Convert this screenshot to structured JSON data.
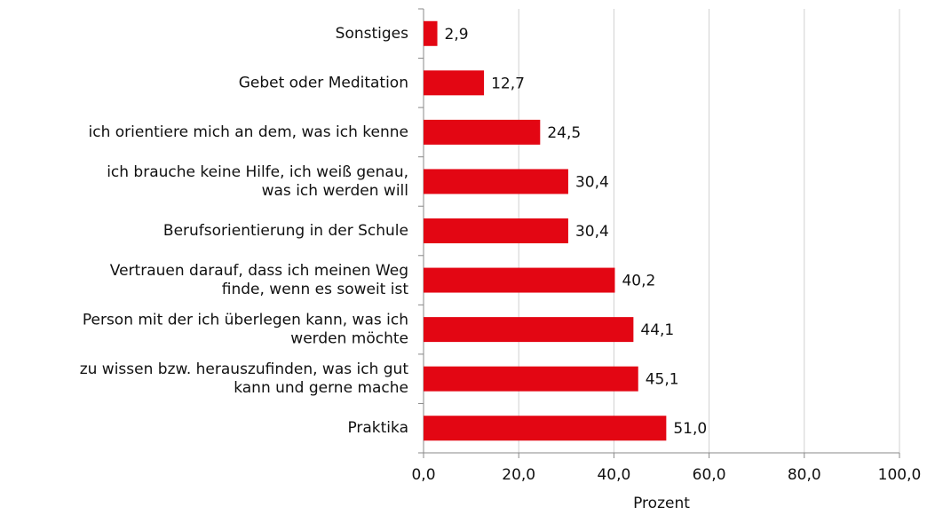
{
  "chart_data": {
    "type": "barh",
    "categories": [
      [
        "Sonstiges"
      ],
      [
        "Gebet oder Meditation"
      ],
      [
        "ich orientiere mich an dem, was ich kenne"
      ],
      [
        "ich brauche keine Hilfe, ich weiß genau,",
        "was ich werden will"
      ],
      [
        "Berufsorientierung in der Schule"
      ],
      [
        "Vertrauen darauf, dass ich meinen Weg",
        "finde, wenn es soweit ist"
      ],
      [
        "Person mit der ich überlegen kann, was ich",
        "werden möchte"
      ],
      [
        "zu wissen bzw. herauszufinden, was ich gut",
        "kann und gerne mache"
      ],
      [
        "Praktika"
      ]
    ],
    "values": [
      2.9,
      12.7,
      24.5,
      30.4,
      30.4,
      40.2,
      44.1,
      45.1,
      51.0
    ],
    "value_labels": [
      "2,9",
      "12,7",
      "24,5",
      "30,4",
      "30,4",
      "40,2",
      "44,1",
      "45,1",
      "51,0"
    ],
    "color": "#e30613",
    "xlabel": "Prozent",
    "xlim": [
      0,
      100
    ],
    "xticks": [
      {
        "value": 0,
        "label": "0,0"
      },
      {
        "value": 20,
        "label": "20,0"
      },
      {
        "value": 40,
        "label": "40,0"
      },
      {
        "value": 60,
        "label": "60,0"
      },
      {
        "value": 80,
        "label": "80,0"
      },
      {
        "value": 100,
        "label": "100,0"
      }
    ],
    "grid": true
  }
}
